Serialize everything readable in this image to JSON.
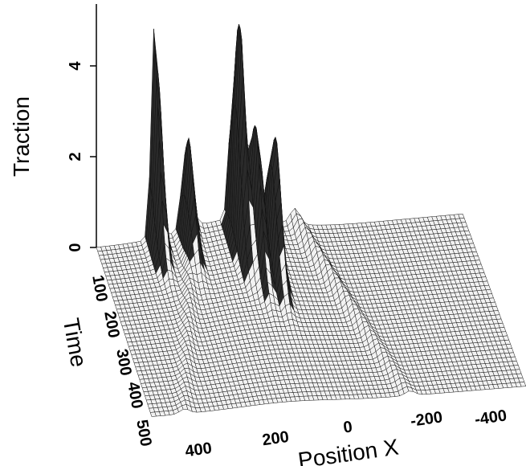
{
  "chart_data": {
    "type": "surface",
    "title": "",
    "zlabel": "Traction",
    "xlabel": "Position X",
    "ylabel": "Time",
    "z_ticks": [
      "0",
      "2",
      "4"
    ],
    "x_ticks": [
      "400",
      "200",
      "0",
      "-200",
      "-400"
    ],
    "y_ticks": [
      "100",
      "200",
      "300",
      "400",
      "500"
    ],
    "zlim": [
      0,
      5
    ],
    "xlim": [
      500,
      -500
    ],
    "ylim": [
      0,
      500
    ],
    "grid": "mesh",
    "peaks": [
      {
        "x": 340,
        "t": 0,
        "z": 5.0
      },
      {
        "x": 130,
        "t": 60,
        "z": 5.0
      },
      {
        "x": 100,
        "t": 120,
        "z": 3.2
      },
      {
        "x": 60,
        "t": 140,
        "z": 3.2
      },
      {
        "x": 260,
        "t": 40,
        "z": 2.0
      }
    ]
  }
}
